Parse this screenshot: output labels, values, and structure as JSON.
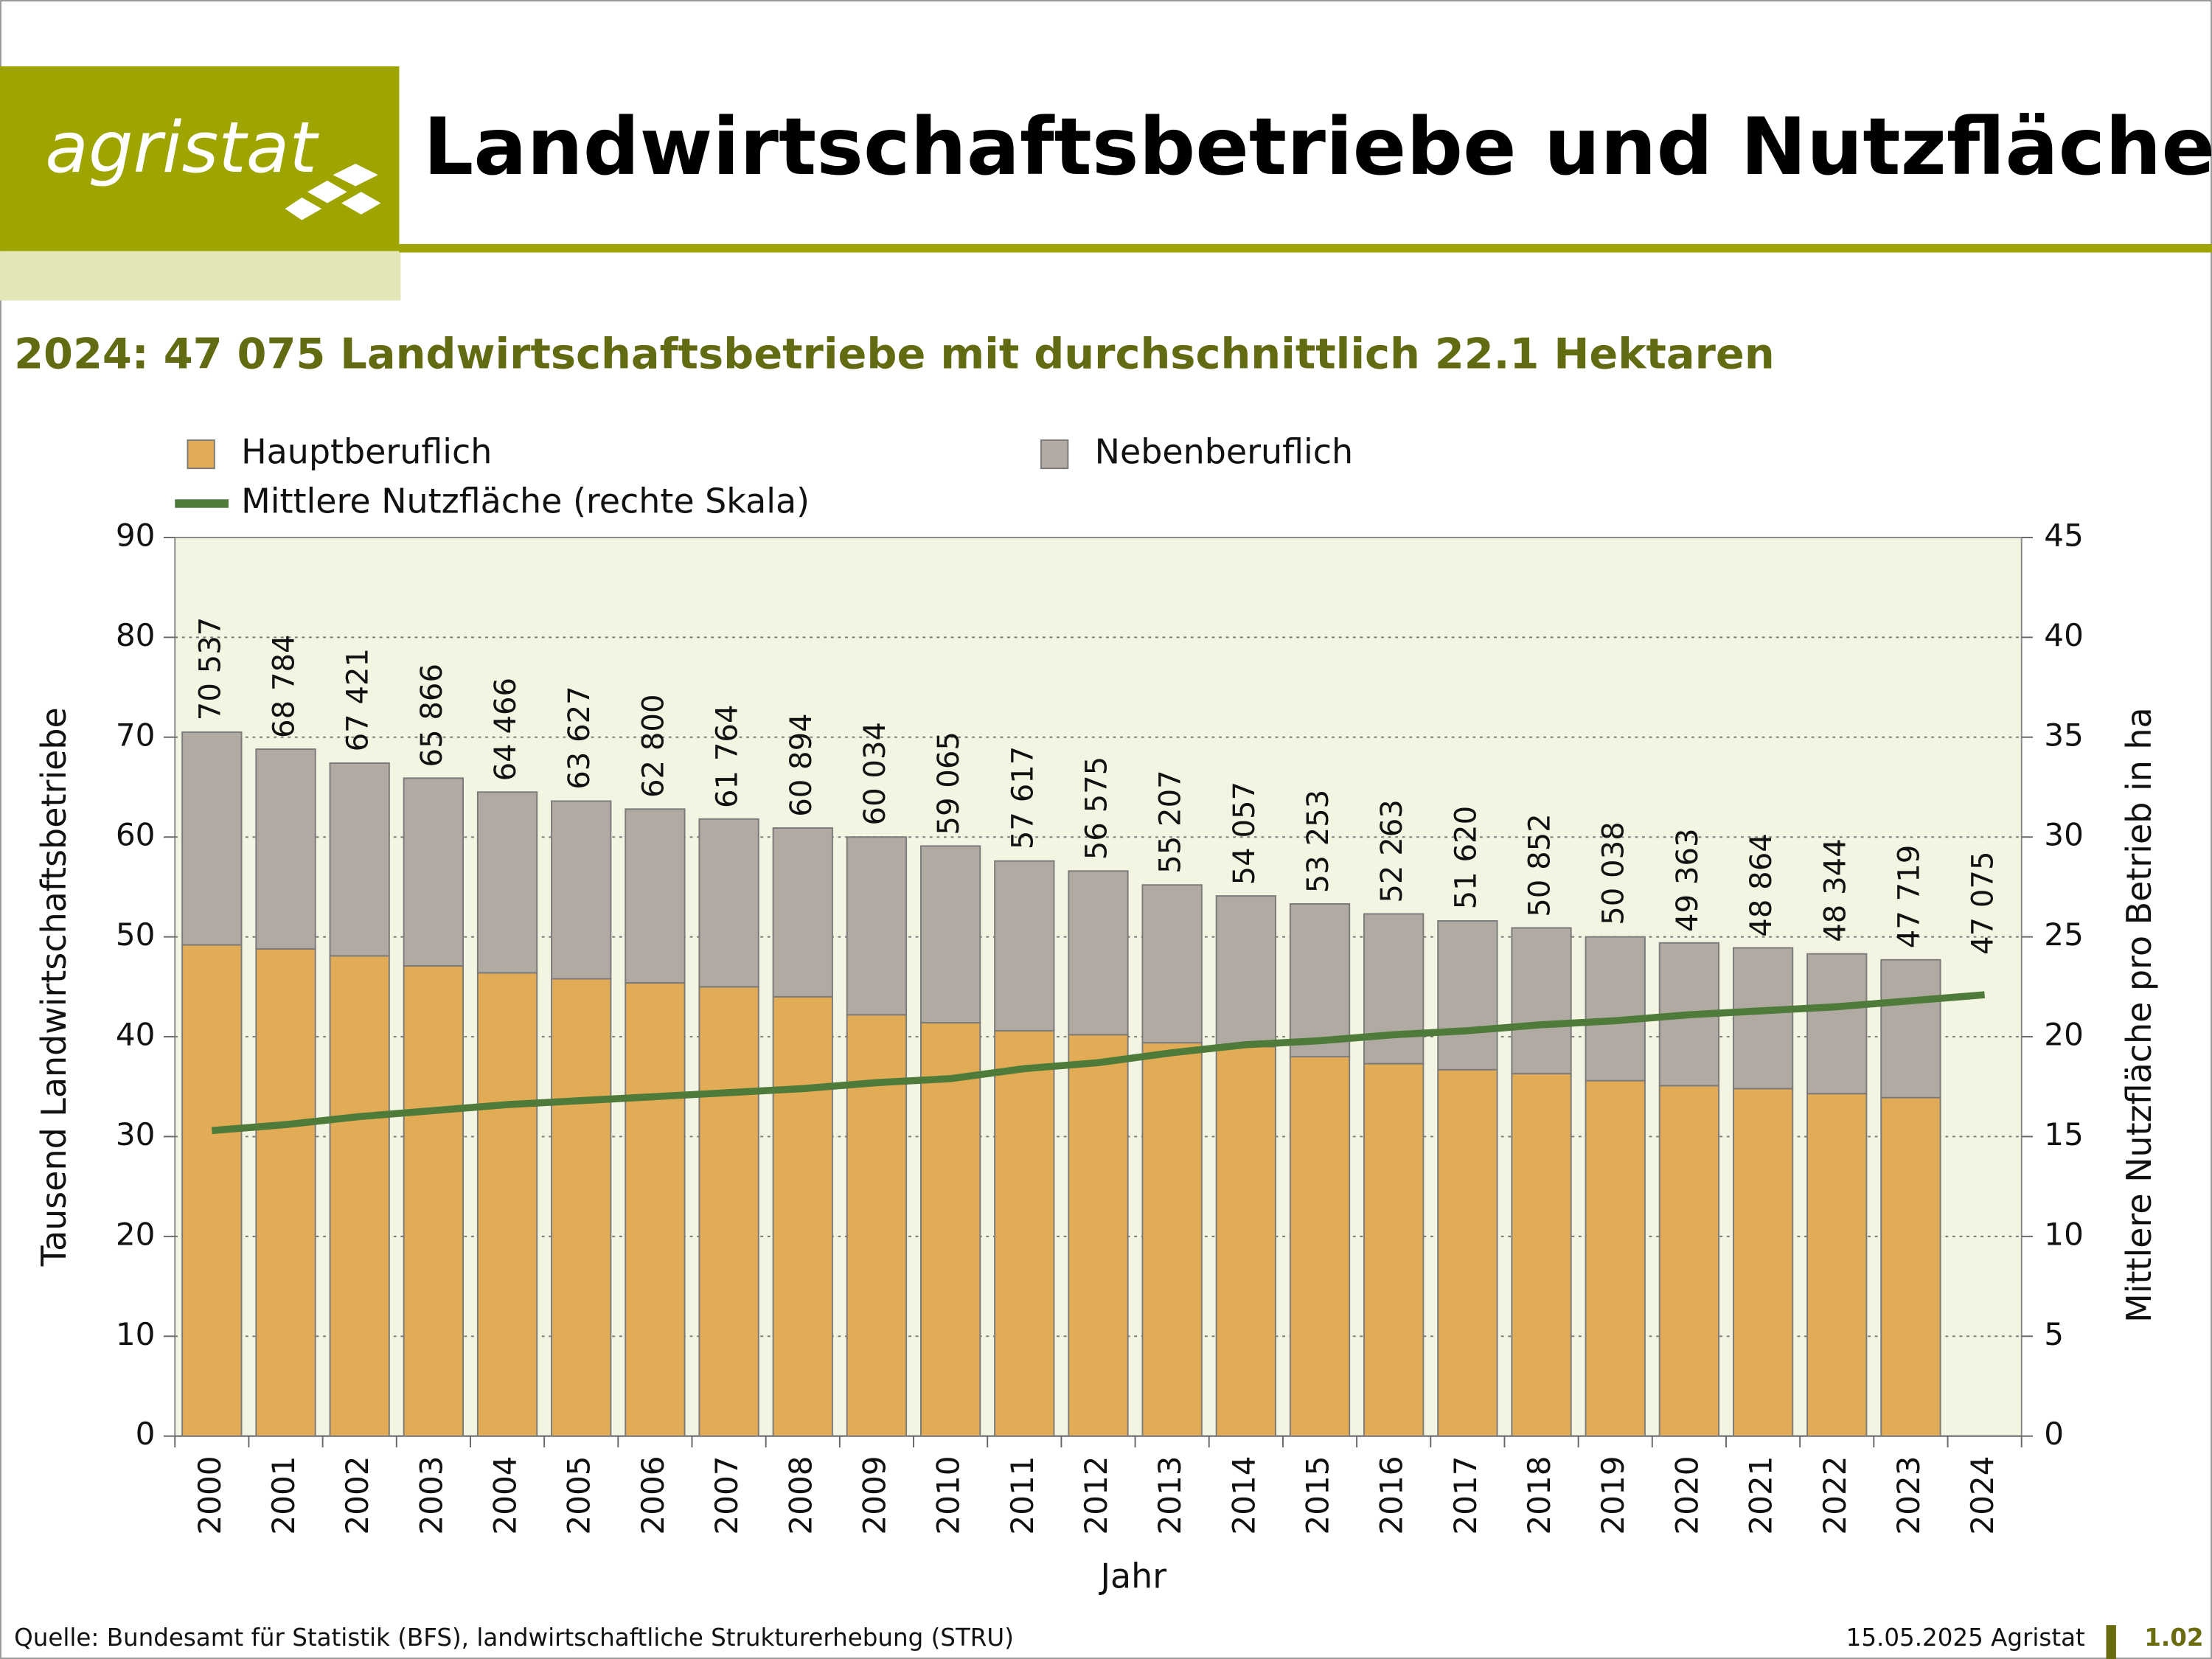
{
  "header": {
    "logo": "agristat",
    "title": "Landwirtschaftsbetriebe und Nutzfläche"
  },
  "chart_data": {
    "type": "bar",
    "stacked": true,
    "title": "2024: 47 075 Landwirtschaftsbetriebe mit durchschnittlich 22.1 Hektaren",
    "categories": [
      "2000",
      "2001",
      "2002",
      "2003",
      "2004",
      "2005",
      "2006",
      "2007",
      "2008",
      "2009",
      "2010",
      "2011",
      "2012",
      "2013",
      "2014",
      "2015",
      "2016",
      "2017",
      "2018",
      "2019",
      "2020",
      "2021",
      "2022",
      "2023",
      "2024"
    ],
    "series": [
      {
        "name": "Hauptberuflich",
        "color": "#e2ac56",
        "values": [
          49.2,
          48.8,
          48.1,
          47.1,
          46.4,
          45.8,
          45.4,
          45.0,
          44.0,
          42.2,
          41.4,
          40.6,
          40.2,
          39.4,
          39.0,
          38.0,
          37.3,
          36.7,
          36.3,
          35.6,
          35.1,
          34.8,
          34.3,
          33.9,
          null
        ]
      },
      {
        "name": "Nebenberuflich",
        "color": "#b1aaa3",
        "values": [
          21.3,
          20.0,
          19.3,
          18.8,
          18.1,
          17.8,
          17.4,
          16.8,
          16.9,
          17.8,
          17.7,
          17.0,
          16.4,
          15.8,
          15.1,
          15.3,
          15.0,
          14.9,
          14.6,
          14.4,
          14.3,
          14.1,
          14.0,
          13.8,
          null
        ]
      },
      {
        "name": "Mittlere Nutzfläche (rechte Skala)",
        "type": "line",
        "axis": "y2",
        "color": "#4e7a3a",
        "values": [
          15.3,
          15.6,
          16.0,
          16.3,
          16.6,
          16.8,
          17.0,
          17.2,
          17.4,
          17.7,
          17.9,
          18.4,
          18.7,
          19.2,
          19.6,
          19.8,
          20.1,
          20.3,
          20.6,
          20.8,
          21.1,
          21.3,
          21.5,
          21.8,
          22.1
        ]
      }
    ],
    "totals": {
      "values": [
        70.537,
        68.784,
        67.421,
        65.866,
        64.466,
        63.627,
        62.8,
        61.764,
        60.894,
        60.034,
        59.065,
        57.617,
        56.575,
        55.207,
        54.057,
        53.253,
        52.263,
        51.62,
        50.852,
        50.038,
        49.363,
        48.864,
        48.344,
        47.719,
        47.075
      ],
      "value_labels": [
        "70 537",
        "68 784",
        "67 421",
        "65 866",
        "64 466",
        "63 627",
        "62 800",
        "61 764",
        "60 894",
        "60 034",
        "59 065",
        "57 617",
        "56 575",
        "55 207",
        "54 057",
        "53 253",
        "52 263",
        "51 620",
        "50 852",
        "50 038",
        "49 363",
        "48 864",
        "48 344",
        "47 719",
        "47 075"
      ]
    },
    "ylim": [
      0,
      90
    ],
    "yticks": [
      0,
      10,
      20,
      30,
      40,
      50,
      60,
      70,
      80,
      90
    ],
    "y2lim": [
      0,
      45
    ],
    "y2ticks": [
      0,
      5,
      10,
      15,
      20,
      25,
      30,
      35,
      40,
      45
    ],
    "y_label": "Tausend Landwirtschaftsbetriebe",
    "y2_label": "Mittlere Nutzfläche pro Betrieb in ha",
    "x_label": "Jahr",
    "grid": true
  },
  "footer": {
    "source": "Quelle: Bundesamt für Statistik (BFS), landwirtschaftliche Strukturerhebung (STRU)",
    "date": "15.05.2025 Agristat",
    "page": "1.02"
  }
}
